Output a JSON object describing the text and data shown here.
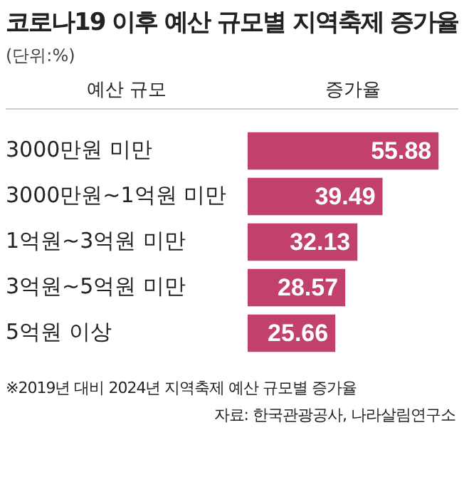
{
  "chart_data": {
    "type": "bar",
    "orientation": "horizontal",
    "title": "코로나19 이후 예산 규모별 지역축제 증가율",
    "subtitle": "(단위:%)",
    "categories": [
      "3000만원 미만",
      "3000만원~1억원 미만",
      "1억원~3억원 미만",
      "3억원~5억원 미만",
      "5억원 이상"
    ],
    "values": [
      55.88,
      39.49,
      32.13,
      28.57,
      25.66
    ],
    "color": "#c2416b",
    "data_labels": true,
    "tick_labels": "y",
    "grid": false,
    "legend": false,
    "annotations": [
      "예산 규모",
      "증가율",
      "※2019년 대비 2024년 지역축제 예산 규모별 증가율",
      "자료: 한국관광공사, 나라살림연구소"
    ]
  }
}
